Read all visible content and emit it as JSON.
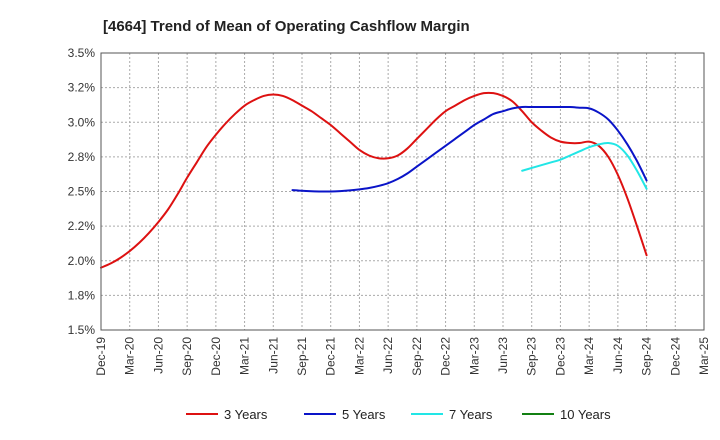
{
  "chart_data": {
    "type": "line",
    "title": "[4664]  Trend of Mean of Operating Cashflow Margin",
    "xlabel": "",
    "ylabel": "",
    "ylim": [
      1.5,
      3.5
    ],
    "x_tick_labels": [
      "Dec-19",
      "Mar-20",
      "Jun-20",
      "Sep-20",
      "Dec-20",
      "Mar-21",
      "Jun-21",
      "Sep-21",
      "Dec-21",
      "Mar-22",
      "Jun-22",
      "Sep-22",
      "Dec-22",
      "Mar-23",
      "Jun-23",
      "Sep-23",
      "Dec-23",
      "Mar-24",
      "Jun-24",
      "Sep-24",
      "Dec-24",
      "Mar-25"
    ],
    "y_ticks": [
      1.5,
      1.75,
      2.0,
      2.25,
      2.5,
      2.75,
      3.0,
      3.25,
      3.5
    ],
    "y_tick_labels": [
      "1.5%",
      "1.8%",
      "2.0%",
      "2.2%",
      "2.5%",
      "2.8%",
      "3.0%",
      "3.2%",
      "3.5%"
    ],
    "grid": true,
    "legend_position": "bottom",
    "series": [
      {
        "name": "3 Years",
        "color": "#dd1111",
        "x": [
          "2019-12",
          "2020-01",
          "2020-02",
          "2020-03",
          "2020-04",
          "2020-05",
          "2020-06",
          "2020-07",
          "2020-08",
          "2020-09",
          "2020-10",
          "2020-11",
          "2020-12",
          "2021-01",
          "2021-02",
          "2021-03",
          "2021-04",
          "2021-05",
          "2021-06",
          "2021-07",
          "2021-08",
          "2021-09",
          "2021-10",
          "2021-11",
          "2021-12",
          "2022-01",
          "2022-02",
          "2022-03",
          "2022-04",
          "2022-05",
          "2022-06",
          "2022-07",
          "2022-08",
          "2022-09",
          "2022-10",
          "2022-11",
          "2022-12",
          "2023-01",
          "2023-02",
          "2023-03",
          "2023-04",
          "2023-05",
          "2023-06",
          "2023-07",
          "2023-08",
          "2023-09",
          "2023-10",
          "2023-11",
          "2023-12",
          "2024-01",
          "2024-02",
          "2024-03",
          "2024-04",
          "2024-05",
          "2024-06",
          "2024-07",
          "2024-08",
          "2024-09"
        ],
        "values": [
          1.95,
          1.98,
          2.02,
          2.07,
          2.13,
          2.2,
          2.28,
          2.37,
          2.48,
          2.6,
          2.71,
          2.82,
          2.91,
          2.99,
          3.06,
          3.12,
          3.16,
          3.19,
          3.2,
          3.19,
          3.16,
          3.12,
          3.08,
          3.03,
          2.98,
          2.92,
          2.86,
          2.8,
          2.76,
          2.74,
          2.74,
          2.76,
          2.81,
          2.88,
          2.95,
          3.02,
          3.08,
          3.12,
          3.16,
          3.19,
          3.21,
          3.21,
          3.19,
          3.15,
          3.08,
          3.0,
          2.94,
          2.89,
          2.86,
          2.85,
          2.85,
          2.86,
          2.83,
          2.75,
          2.62,
          2.45,
          2.25,
          2.04
        ]
      },
      {
        "name": "5 Years",
        "color": "#0a14c8",
        "x": [
          "2021-08",
          "2021-09",
          "2021-10",
          "2021-11",
          "2021-12",
          "2022-01",
          "2022-02",
          "2022-03",
          "2022-04",
          "2022-05",
          "2022-06",
          "2022-07",
          "2022-08",
          "2022-09",
          "2022-10",
          "2022-11",
          "2022-12",
          "2023-01",
          "2023-02",
          "2023-03",
          "2023-04",
          "2023-05",
          "2023-06",
          "2023-07",
          "2023-08",
          "2023-09",
          "2023-10",
          "2023-11",
          "2023-12",
          "2024-01",
          "2024-02",
          "2024-03",
          "2024-04",
          "2024-05",
          "2024-06",
          "2024-07",
          "2024-08",
          "2024-09"
        ],
        "values": [
          2.51,
          2.505,
          2.502,
          2.5,
          2.5,
          2.503,
          2.508,
          2.515,
          2.525,
          2.54,
          2.56,
          2.59,
          2.63,
          2.68,
          2.73,
          2.78,
          2.83,
          2.88,
          2.93,
          2.98,
          3.02,
          3.06,
          3.08,
          3.1,
          3.11,
          3.11,
          3.11,
          3.11,
          3.11,
          3.11,
          3.105,
          3.1,
          3.07,
          3.02,
          2.94,
          2.84,
          2.72,
          2.58
        ]
      },
      {
        "name": "7 Years",
        "color": "#22e6e6",
        "x": [
          "2023-08",
          "2023-09",
          "2023-10",
          "2023-11",
          "2023-12",
          "2024-01",
          "2024-02",
          "2024-03",
          "2024-04",
          "2024-05",
          "2024-06",
          "2024-07",
          "2024-08",
          "2024-09"
        ],
        "values": [
          2.65,
          2.67,
          2.69,
          2.71,
          2.73,
          2.76,
          2.79,
          2.82,
          2.84,
          2.85,
          2.83,
          2.76,
          2.65,
          2.52
        ]
      },
      {
        "name": "10 Years",
        "color": "#138013",
        "x": [],
        "values": []
      }
    ]
  }
}
